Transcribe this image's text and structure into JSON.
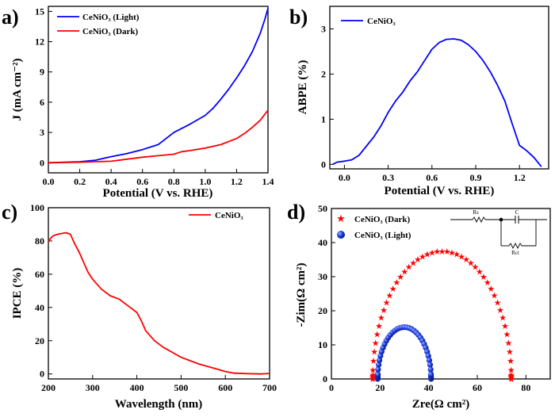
{
  "chart_data": [
    {
      "panel": "a)",
      "type": "line",
      "xlabel": "Potential (V vs. RHE)",
      "ylabel": "J (mA cm⁻²)",
      "xlim": [
        0.0,
        1.4
      ],
      "ylim": [
        -1,
        15.5
      ],
      "xticks": [
        0.0,
        0.2,
        0.4,
        0.6,
        0.8,
        1.0,
        1.2,
        1.4
      ],
      "xtick_labels": [
        "0.0",
        "0.2",
        "0.4",
        "0.6",
        "0.8",
        "1.0",
        "1.2",
        "1.4"
      ],
      "yticks": [
        0,
        3,
        6,
        9,
        12,
        15
      ],
      "ytick_labels": [
        "0",
        "3",
        "6",
        "9",
        "12",
        "15"
      ],
      "legend_position": "top-left",
      "series": [
        {
          "name": "CeNiO₃ (Light)",
          "color": "#0000ff",
          "x": [
            0.0,
            0.1,
            0.2,
            0.3,
            0.4,
            0.5,
            0.6,
            0.7,
            0.8,
            0.9,
            1.0,
            1.05,
            1.1,
            1.15,
            1.2,
            1.25,
            1.3,
            1.35,
            1.38,
            1.4
          ],
          "y": [
            0.0,
            0.05,
            0.1,
            0.25,
            0.6,
            0.9,
            1.3,
            1.8,
            3.0,
            3.8,
            4.7,
            5.4,
            6.3,
            7.3,
            8.4,
            9.6,
            11.0,
            12.8,
            14.2,
            15.3
          ]
        },
        {
          "name": "CeNiO₃ (Dark)",
          "color": "#ff0000",
          "x": [
            0.0,
            0.1,
            0.2,
            0.3,
            0.4,
            0.5,
            0.6,
            0.7,
            0.8,
            0.85,
            0.9,
            1.0,
            1.1,
            1.2,
            1.25,
            1.3,
            1.35,
            1.4
          ],
          "y": [
            0.0,
            0.02,
            0.05,
            0.1,
            0.15,
            0.35,
            0.55,
            0.7,
            0.85,
            1.1,
            1.2,
            1.45,
            1.8,
            2.4,
            2.9,
            3.5,
            4.2,
            5.2
          ]
        }
      ]
    },
    {
      "panel": "b)",
      "type": "line",
      "xlabel": "Potential (V vs. RHE)",
      "ylabel": "ABPE (%)",
      "xlim": [
        -0.1,
        1.4
      ],
      "ylim": [
        -0.1,
        3.5
      ],
      "xticks": [
        0.0,
        0.3,
        0.6,
        0.9,
        1.2
      ],
      "xtick_labels": [
        "0.0",
        "0.3",
        "0.6",
        "0.9",
        "1.2"
      ],
      "yticks": [
        0,
        1,
        2,
        3
      ],
      "ytick_labels": [
        "0",
        "1",
        "2",
        "3"
      ],
      "legend_position": "top-left",
      "series": [
        {
          "name": "CeNiO₃",
          "color": "#0000ff",
          "x": [
            -0.08,
            -0.05,
            0.0,
            0.05,
            0.1,
            0.15,
            0.2,
            0.25,
            0.3,
            0.35,
            0.4,
            0.45,
            0.5,
            0.55,
            0.6,
            0.65,
            0.7,
            0.75,
            0.8,
            0.85,
            0.9,
            0.95,
            1.0,
            1.05,
            1.1,
            1.15,
            1.2,
            1.25,
            1.3,
            1.35
          ],
          "y": [
            0.0,
            0.05,
            0.07,
            0.1,
            0.2,
            0.4,
            0.6,
            0.85,
            1.15,
            1.4,
            1.6,
            1.85,
            2.05,
            2.3,
            2.55,
            2.7,
            2.77,
            2.78,
            2.75,
            2.65,
            2.5,
            2.3,
            2.05,
            1.75,
            1.4,
            0.9,
            0.42,
            0.3,
            0.15,
            -0.05
          ]
        }
      ]
    },
    {
      "panel": "c)",
      "type": "line",
      "xlabel": "Wavelength (nm)",
      "ylabel": "IPCE (%)",
      "xlim": [
        200,
        700
      ],
      "ylim": [
        -3,
        100
      ],
      "xticks": [
        200,
        300,
        400,
        500,
        600,
        700
      ],
      "xtick_labels": [
        "200",
        "300",
        "400",
        "500",
        "600",
        "700"
      ],
      "yticks": [
        0,
        20,
        40,
        60,
        80,
        100
      ],
      "ytick_labels": [
        "0",
        "20",
        "40",
        "60",
        "80",
        "100"
      ],
      "legend_position": "top-right",
      "series": [
        {
          "name": "CeNiO₃",
          "color": "#ff0000",
          "x": [
            200,
            210,
            220,
            240,
            250,
            260,
            270,
            280,
            290,
            300,
            320,
            340,
            360,
            380,
            400,
            410,
            420,
            440,
            460,
            480,
            500,
            520,
            540,
            560,
            580,
            600,
            620,
            650,
            680,
            700
          ],
          "y": [
            80,
            83,
            84,
            85,
            84,
            78,
            73,
            67,
            61,
            57,
            51,
            47,
            45,
            41,
            37,
            32,
            26,
            20,
            16,
            13,
            10,
            8,
            6,
            4.5,
            3,
            1.5,
            0.5,
            0.2,
            0,
            0.3
          ]
        }
      ]
    },
    {
      "panel": "d)",
      "type": "scatter",
      "xlabel": "Zre(Ω cm²)",
      "ylabel": "-Zim(Ω cm²)",
      "xlim": [
        0,
        90
      ],
      "ylim": [
        0,
        50
      ],
      "xticks": [
        0,
        20,
        40,
        60,
        80
      ],
      "xtick_labels": [
        "0",
        "20",
        "40",
        "60",
        "80"
      ],
      "yticks": [
        0,
        10,
        20,
        30,
        40,
        50
      ],
      "ytick_labels": [
        "0",
        "10",
        "20",
        "30",
        "40",
        "50"
      ],
      "legend_position": "top-left",
      "series": [
        {
          "name": "CeNiO₃ (Dark)",
          "color": "#ff0000",
          "marker": "star",
          "semicircle": {
            "x_start": 17,
            "x_end": 74,
            "peak": 37.5
          }
        },
        {
          "name": "CeNiO₃ (Light)",
          "color": "#0000ff",
          "marker": "sphere",
          "semicircle": {
            "x_start": 19,
            "x_end": 41,
            "peak": 15.2
          }
        }
      ],
      "inset_circuit": {
        "labels": [
          "Rs",
          "C",
          "Rct"
        ]
      }
    }
  ]
}
